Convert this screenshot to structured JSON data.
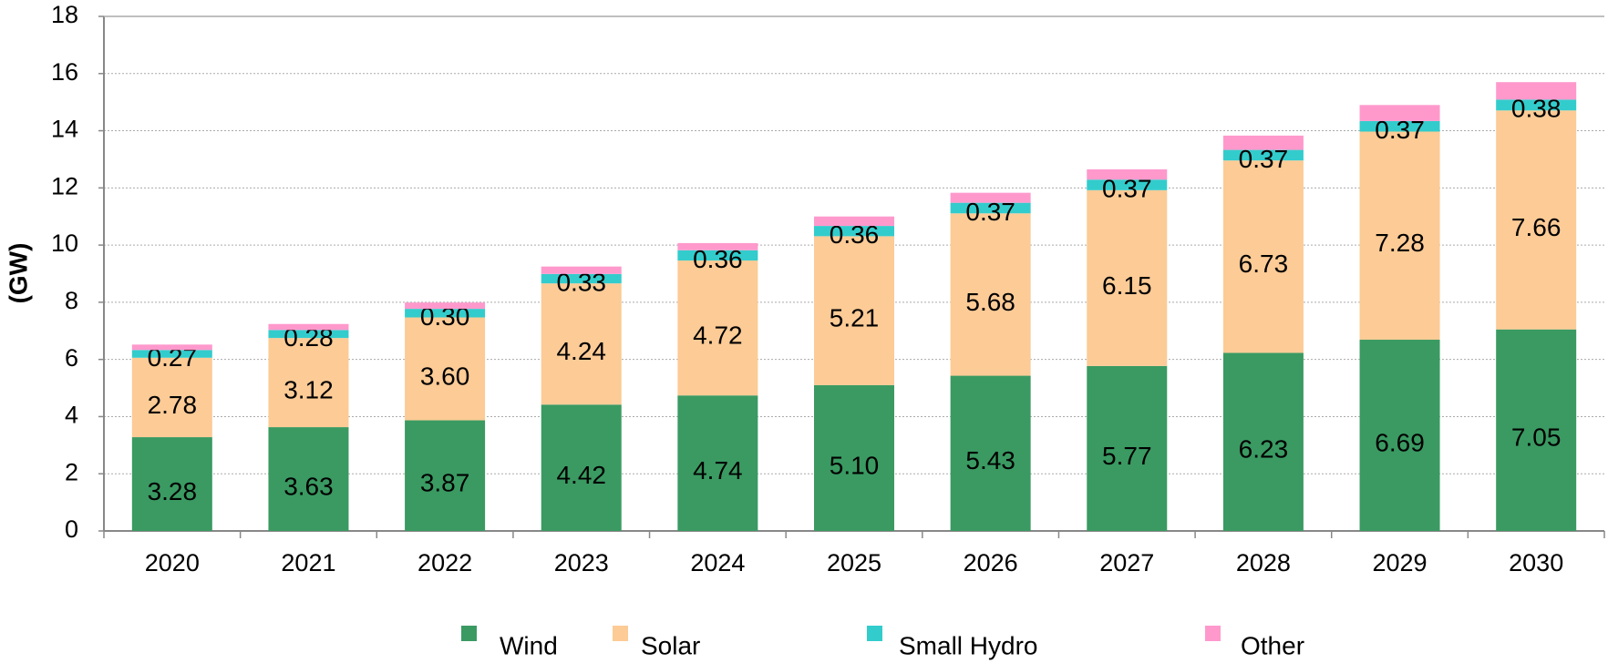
{
  "chart_data": {
    "type": "stacked_bar",
    "y_label": "(GW)",
    "categories": [
      "2020",
      "2021",
      "2022",
      "2023",
      "2024",
      "2025",
      "2026",
      "2027",
      "2028",
      "2029",
      "2030"
    ],
    "series": [
      {
        "name": "Wind",
        "color": "#3a9a62",
        "values": [
          3.28,
          3.63,
          3.87,
          4.42,
          4.74,
          5.1,
          5.43,
          5.77,
          6.23,
          6.69,
          7.05
        ],
        "value_labels": [
          "3.28",
          "3.63",
          "3.87",
          "4.42",
          "4.74",
          "5.10",
          "5.43",
          "5.77",
          "6.23",
          "6.69",
          "7.05"
        ]
      },
      {
        "name": "Solar",
        "color": "#fccb96",
        "values": [
          2.78,
          3.12,
          3.6,
          4.24,
          4.72,
          5.21,
          5.68,
          6.15,
          6.73,
          7.28,
          7.66
        ],
        "value_labels": [
          "2.78",
          "3.12",
          "3.60",
          "4.24",
          "4.72",
          "5.21",
          "5.68",
          "6.15",
          "6.73",
          "7.28",
          "7.66"
        ]
      },
      {
        "name": "Small Hydro",
        "color": "#33cccc",
        "values": [
          0.27,
          0.28,
          0.3,
          0.33,
          0.36,
          0.36,
          0.37,
          0.37,
          0.37,
          0.37,
          0.38
        ],
        "value_labels": [
          "0.27",
          "0.28",
          "0.30",
          "0.33",
          "0.36",
          "0.36",
          "0.37",
          "0.37",
          "0.37",
          "0.37",
          "0.38"
        ]
      },
      {
        "name": "Other",
        "color": "#ff99cc",
        "values": [
          0.19,
          0.21,
          0.22,
          0.26,
          0.25,
          0.33,
          0.35,
          0.36,
          0.5,
          0.56,
          0.61
        ]
      }
    ],
    "ylim": [
      0,
      18
    ],
    "yticks": [
      0,
      2,
      4,
      6,
      8,
      10,
      12,
      14,
      16,
      18
    ],
    "grid": true,
    "legend": "bottom"
  }
}
